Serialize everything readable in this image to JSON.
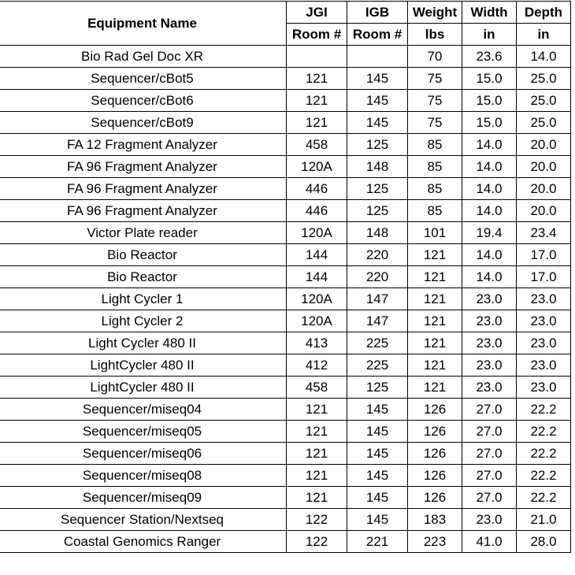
{
  "table": {
    "headers": {
      "name": "Equipment Name",
      "jgi_top": "JGI",
      "jgi_bottom": "Room #",
      "igb_top": "IGB",
      "igb_bottom": "Room #",
      "weight_top": "Weight",
      "weight_bottom": "lbs",
      "width_top": "Width",
      "width_bottom": "in",
      "depth_top": "Depth",
      "depth_bottom": "in"
    },
    "rows": [
      {
        "name": "Bio Rad Gel Doc XR",
        "jgi": "",
        "igb": "",
        "weight": "70",
        "width": "23.6",
        "depth": "14.0"
      },
      {
        "name": "Sequencer/cBot5",
        "jgi": "121",
        "igb": "145",
        "weight": "75",
        "width": "15.0",
        "depth": "25.0"
      },
      {
        "name": "Sequencer/cBot6",
        "jgi": "121",
        "igb": "145",
        "weight": "75",
        "width": "15.0",
        "depth": "25.0"
      },
      {
        "name": "Sequencer/cBot9",
        "jgi": "121",
        "igb": "145",
        "weight": "75",
        "width": "15.0",
        "depth": "25.0"
      },
      {
        "name": "FA 12 Fragment Analyzer",
        "jgi": "458",
        "igb": "125",
        "weight": "85",
        "width": "14.0",
        "depth": "20.0"
      },
      {
        "name": "FA 96 Fragment Analyzer",
        "jgi": "120A",
        "igb": "148",
        "weight": "85",
        "width": "14.0",
        "depth": "20.0"
      },
      {
        "name": "FA 96 Fragment Analyzer",
        "jgi": "446",
        "igb": "125",
        "weight": "85",
        "width": "14.0",
        "depth": "20.0"
      },
      {
        "name": "FA 96 Fragment Analyzer",
        "jgi": "446",
        "igb": "125",
        "weight": "85",
        "width": "14.0",
        "depth": "20.0"
      },
      {
        "name": "Victor Plate reader",
        "jgi": "120A",
        "igb": "148",
        "weight": "101",
        "width": "19.4",
        "depth": "23.4"
      },
      {
        "name": "Bio Reactor",
        "jgi": "144",
        "igb": "220",
        "weight": "121",
        "width": "14.0",
        "depth": "17.0"
      },
      {
        "name": "Bio Reactor",
        "jgi": "144",
        "igb": "220",
        "weight": "121",
        "width": "14.0",
        "depth": "17.0"
      },
      {
        "name": "Light Cycler 1",
        "jgi": "120A",
        "igb": "147",
        "weight": "121",
        "width": "23.0",
        "depth": "23.0"
      },
      {
        "name": "Light Cycler 2",
        "jgi": "120A",
        "igb": "147",
        "weight": "121",
        "width": "23.0",
        "depth": "23.0"
      },
      {
        "name": "Light Cycler 480 II",
        "jgi": "413",
        "igb": "225",
        "weight": "121",
        "width": "23.0",
        "depth": "23.0"
      },
      {
        "name": "LightCycler 480 II",
        "jgi": "412",
        "igb": "225",
        "weight": "121",
        "width": "23.0",
        "depth": "23.0"
      },
      {
        "name": "LightCycler 480 II",
        "jgi": "458",
        "igb": "125",
        "weight": "121",
        "width": "23.0",
        "depth": "23.0"
      },
      {
        "name": "Sequencer/miseq04",
        "jgi": "121",
        "igb": "145",
        "weight": "126",
        "width": "27.0",
        "depth": "22.2"
      },
      {
        "name": "Sequencer/miseq05",
        "jgi": "121",
        "igb": "145",
        "weight": "126",
        "width": "27.0",
        "depth": "22.2"
      },
      {
        "name": "Sequencer/miseq06",
        "jgi": "121",
        "igb": "145",
        "weight": "126",
        "width": "27.0",
        "depth": "22.2"
      },
      {
        "name": "Sequencer/miseq08",
        "jgi": "121",
        "igb": "145",
        "weight": "126",
        "width": "27.0",
        "depth": "22.2"
      },
      {
        "name": "Sequencer/miseq09",
        "jgi": "121",
        "igb": "145",
        "weight": "126",
        "width": "27.0",
        "depth": "22.2"
      },
      {
        "name": "Sequencer Station/Nextseq",
        "jgi": "122",
        "igb": "145",
        "weight": "183",
        "width": "23.0",
        "depth": "21.0"
      },
      {
        "name": "Coastal Genomics Ranger",
        "jgi": "122",
        "igb": "221",
        "weight": "223",
        "width": "41.0",
        "depth": "28.0"
      }
    ]
  }
}
